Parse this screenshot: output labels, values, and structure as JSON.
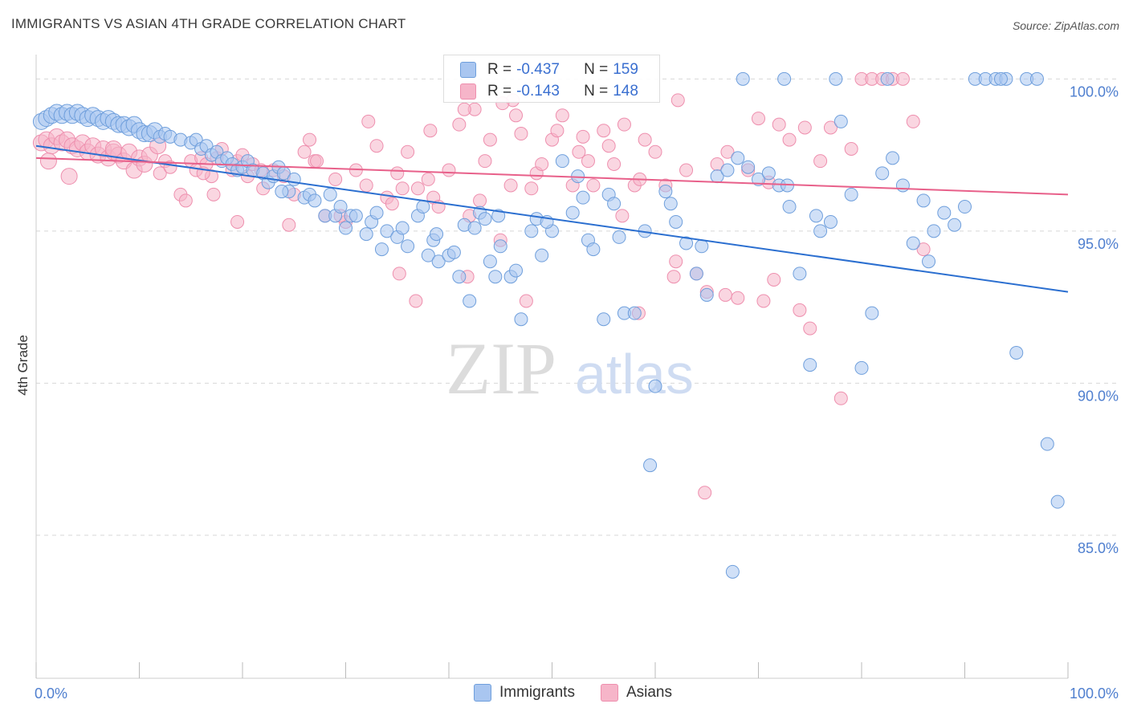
{
  "header": {
    "title": "IMMIGRANTS VS ASIAN 4TH GRADE CORRELATION CHART",
    "source": "Source: ZipAtlas.com"
  },
  "watermark": {
    "zip": "ZIP",
    "atlas": "atlas"
  },
  "legend": {
    "rows": [
      {
        "r_label": "R =",
        "r_value": "-0.437",
        "n_label": "N =",
        "n_value": "159"
      },
      {
        "r_label": "R =",
        "r_value": "-0.143",
        "n_label": "N =",
        "n_value": "148"
      }
    ]
  },
  "bottom_legend": {
    "items": [
      "Immigrants",
      "Asians"
    ]
  },
  "colors": {
    "immigrants_fill": "#a9c6f0",
    "immigrants_stroke": "#6f9fdc",
    "immigrants_line": "#2b6fd0",
    "asians_fill": "#f6b5c9",
    "asians_stroke": "#ee8fae",
    "asians_line": "#e8608a",
    "tick_label": "#4f7fcf",
    "grid": "#d8d8d8"
  },
  "chart_data": {
    "type": "scatter",
    "title": "IMMIGRANTS VS ASIAN 4TH GRADE CORRELATION CHART",
    "xlabel": "",
    "ylabel": "4th Grade",
    "xlim": [
      0,
      100
    ],
    "ylim": [
      80.3,
      100.8
    ],
    "x_tick_labels": [
      "0.0%",
      "100.0%"
    ],
    "y_ticks": [
      85,
      90,
      95,
      100
    ],
    "y_tick_labels": [
      "85.0%",
      "90.0%",
      "95.0%",
      "100.0%"
    ],
    "grid": true,
    "legend_position": "top-center",
    "series": [
      {
        "name": "Immigrants",
        "trend": [
          [
            0,
            97.8
          ],
          [
            100,
            93.0
          ]
        ],
        "points": [
          [
            0.5,
            98.6
          ],
          [
            1,
            98.7
          ],
          [
            1.5,
            98.8
          ],
          [
            2,
            98.9
          ],
          [
            2.5,
            98.8
          ],
          [
            3,
            98.9
          ],
          [
            3.5,
            98.8
          ],
          [
            4,
            98.9
          ],
          [
            4.5,
            98.8
          ],
          [
            5,
            98.7
          ],
          [
            5.5,
            98.8
          ],
          [
            6,
            98.7
          ],
          [
            6.5,
            98.6
          ],
          [
            7,
            98.7
          ],
          [
            7.5,
            98.6
          ],
          [
            8,
            98.5
          ],
          [
            8.5,
            98.5
          ],
          [
            9,
            98.4
          ],
          [
            9.5,
            98.5
          ],
          [
            10,
            98.3
          ],
          [
            10.5,
            98.2
          ],
          [
            11,
            98.2
          ],
          [
            11.5,
            98.3
          ],
          [
            12,
            98.1
          ],
          [
            12.5,
            98.2
          ],
          [
            13,
            98.1
          ],
          [
            14,
            98.0
          ],
          [
            15,
            97.9
          ],
          [
            15.5,
            98.0
          ],
          [
            16,
            97.7
          ],
          [
            16.5,
            97.8
          ],
          [
            17,
            97.5
          ],
          [
            17.5,
            97.6
          ],
          [
            18,
            97.3
          ],
          [
            18.5,
            97.4
          ],
          [
            19,
            97.2
          ],
          [
            19.5,
            97.0
          ],
          [
            20,
            97.1
          ],
          [
            20.5,
            97.3
          ],
          [
            21,
            97.0
          ],
          [
            22,
            96.9
          ],
          [
            22.5,
            96.6
          ],
          [
            23,
            96.8
          ],
          [
            23.5,
            97.1
          ],
          [
            24,
            96.9
          ],
          [
            24.5,
            96.3
          ],
          [
            25,
            96.7
          ],
          [
            26,
            96.1
          ],
          [
            26.5,
            96.2
          ],
          [
            27,
            96.0
          ],
          [
            28,
            95.5
          ],
          [
            28.5,
            96.2
          ],
          [
            29,
            95.5
          ],
          [
            29.5,
            95.8
          ],
          [
            30,
            95.1
          ],
          [
            30.5,
            95.5
          ],
          [
            31,
            95.5
          ],
          [
            32,
            94.9
          ],
          [
            32.5,
            95.3
          ],
          [
            33,
            95.6
          ],
          [
            34,
            95.0
          ],
          [
            35,
            94.8
          ],
          [
            35.5,
            95.1
          ],
          [
            36,
            94.5
          ],
          [
            37,
            95.5
          ],
          [
            37.5,
            95.8
          ],
          [
            38,
            94.2
          ],
          [
            38.5,
            94.7
          ],
          [
            39,
            94.0
          ],
          [
            40,
            94.2
          ],
          [
            40.5,
            94.3
          ],
          [
            41,
            93.5
          ],
          [
            41.5,
            95.2
          ],
          [
            42,
            92.7
          ],
          [
            42.5,
            95.1
          ],
          [
            43,
            95.6
          ],
          [
            43.5,
            95.4
          ],
          [
            44,
            94.0
          ],
          [
            44.5,
            93.5
          ],
          [
            45,
            94.5
          ],
          [
            46,
            93.5
          ],
          [
            46.5,
            93.7
          ],
          [
            47,
            92.1
          ],
          [
            48,
            95.0
          ],
          [
            48.5,
            95.4
          ],
          [
            49,
            94.2
          ],
          [
            50,
            95.0
          ],
          [
            51,
            97.3
          ],
          [
            52,
            95.6
          ],
          [
            53,
            96.1
          ],
          [
            53.5,
            94.7
          ],
          [
            54,
            94.4
          ],
          [
            55,
            92.1
          ],
          [
            55.5,
            96.2
          ],
          [
            56,
            95.9
          ],
          [
            57,
            92.3
          ],
          [
            58,
            92.3
          ],
          [
            59,
            95.0
          ],
          [
            60,
            89.9
          ],
          [
            61,
            96.3
          ],
          [
            62,
            95.3
          ],
          [
            63,
            94.6
          ],
          [
            64,
            93.6
          ],
          [
            65,
            92.9
          ],
          [
            66,
            96.8
          ],
          [
            67,
            97.0
          ],
          [
            68,
            97.4
          ],
          [
            69,
            97.1
          ],
          [
            70,
            96.7
          ],
          [
            71,
            96.9
          ],
          [
            72,
            96.5
          ],
          [
            73,
            95.8
          ],
          [
            74,
            93.6
          ],
          [
            75,
            90.6
          ],
          [
            76,
            95.0
          ],
          [
            77,
            95.3
          ],
          [
            78,
            98.6
          ],
          [
            79,
            96.2
          ],
          [
            80,
            90.5
          ],
          [
            81,
            92.3
          ],
          [
            82,
            96.9
          ],
          [
            83,
            97.4
          ],
          [
            84,
            96.5
          ],
          [
            85,
            94.6
          ],
          [
            86,
            96.0
          ],
          [
            87,
            95.0
          ],
          [
            88,
            95.6
          ],
          [
            89,
            95.2
          ],
          [
            90,
            95.8
          ],
          [
            91,
            100.0
          ],
          [
            92,
            100.0
          ],
          [
            93,
            100.0
          ],
          [
            94,
            100.0
          ],
          [
            95,
            91.0
          ],
          [
            96,
            100.0
          ],
          [
            97,
            100.0
          ],
          [
            98,
            88.0
          ],
          [
            99,
            86.1
          ],
          [
            68.5,
            100.0
          ],
          [
            72.5,
            100.0
          ],
          [
            77.5,
            100.0
          ],
          [
            82.5,
            100.0
          ],
          [
            93.5,
            100.0
          ],
          [
            86.5,
            94.0
          ],
          [
            59.5,
            87.3
          ],
          [
            67.5,
            83.8
          ],
          [
            64.5,
            94.5
          ],
          [
            72.8,
            96.5
          ],
          [
            75.6,
            95.5
          ],
          [
            61.5,
            95.9
          ],
          [
            56.5,
            94.8
          ],
          [
            52.5,
            96.8
          ],
          [
            49.5,
            95.3
          ],
          [
            44.8,
            95.5
          ],
          [
            38.8,
            94.9
          ],
          [
            33.5,
            94.4
          ],
          [
            23.8,
            96.3
          ]
        ]
      },
      {
        "name": "Asians",
        "trend": [
          [
            0,
            97.4
          ],
          [
            100,
            96.2
          ]
        ],
        "points": [
          [
            0.5,
            97.9
          ],
          [
            1,
            98.0
          ],
          [
            1.5,
            97.8
          ],
          [
            2,
            98.1
          ],
          [
            2.5,
            97.9
          ],
          [
            3,
            98.0
          ],
          [
            3.5,
            97.8
          ],
          [
            4,
            97.7
          ],
          [
            4.5,
            97.9
          ],
          [
            5,
            97.6
          ],
          [
            5.5,
            97.8
          ],
          [
            6,
            97.5
          ],
          [
            6.5,
            97.7
          ],
          [
            7,
            97.4
          ],
          [
            7.5,
            97.6
          ],
          [
            8,
            97.5
          ],
          [
            8.5,
            97.3
          ],
          [
            9,
            97.6
          ],
          [
            9.5,
            97.0
          ],
          [
            10,
            97.4
          ],
          [
            10.5,
            97.2
          ],
          [
            11,
            97.5
          ],
          [
            12,
            96.9
          ],
          [
            12.5,
            97.3
          ],
          [
            13,
            97.1
          ],
          [
            14,
            96.2
          ],
          [
            14.5,
            96.0
          ],
          [
            15,
            97.3
          ],
          [
            15.5,
            97.0
          ],
          [
            16,
            97.4
          ],
          [
            16.5,
            97.2
          ],
          [
            17,
            96.8
          ],
          [
            17.5,
            97.4
          ],
          [
            18,
            97.7
          ],
          [
            19,
            97.0
          ],
          [
            19.5,
            97.3
          ],
          [
            20,
            97.5
          ],
          [
            20.5,
            96.8
          ],
          [
            21,
            97.2
          ],
          [
            22,
            96.4
          ],
          [
            23,
            97.0
          ],
          [
            24,
            96.8
          ],
          [
            25,
            96.2
          ],
          [
            26,
            97.6
          ],
          [
            26.5,
            98.0
          ],
          [
            27,
            97.3
          ],
          [
            28,
            95.5
          ],
          [
            29,
            96.7
          ],
          [
            30,
            95.3
          ],
          [
            31,
            97.0
          ],
          [
            32,
            96.5
          ],
          [
            33,
            97.8
          ],
          [
            34,
            96.1
          ],
          [
            34.5,
            95.9
          ],
          [
            35,
            96.9
          ],
          [
            35.5,
            96.4
          ],
          [
            36,
            97.6
          ],
          [
            37,
            96.4
          ],
          [
            38,
            96.7
          ],
          [
            38.5,
            96.1
          ],
          [
            39,
            95.8
          ],
          [
            40,
            97.0
          ],
          [
            41,
            98.5
          ],
          [
            42,
            95.5
          ],
          [
            42.5,
            99.0
          ],
          [
            43,
            96.0
          ],
          [
            43.5,
            97.3
          ],
          [
            44,
            98.0
          ],
          [
            45,
            94.7
          ],
          [
            46,
            96.5
          ],
          [
            46.5,
            98.8
          ],
          [
            47,
            98.2
          ],
          [
            48,
            96.4
          ],
          [
            48.5,
            96.9
          ],
          [
            49,
            97.2
          ],
          [
            50,
            98.0
          ],
          [
            51,
            98.8
          ],
          [
            52,
            96.5
          ],
          [
            53,
            98.1
          ],
          [
            53.5,
            97.3
          ],
          [
            54,
            96.5
          ],
          [
            55,
            98.3
          ],
          [
            55.5,
            97.8
          ],
          [
            56,
            97.2
          ],
          [
            57,
            98.5
          ],
          [
            58,
            96.5
          ],
          [
            58.5,
            96.7
          ],
          [
            59,
            98.0
          ],
          [
            60,
            97.6
          ],
          [
            61,
            96.5
          ],
          [
            62,
            94.0
          ],
          [
            63,
            97.0
          ],
          [
            64,
            93.6
          ],
          [
            65,
            93.0
          ],
          [
            66,
            97.2
          ],
          [
            67,
            97.6
          ],
          [
            68,
            92.8
          ],
          [
            69,
            97.0
          ],
          [
            70,
            98.7
          ],
          [
            71,
            96.6
          ],
          [
            72,
            98.5
          ],
          [
            73,
            98.0
          ],
          [
            74,
            92.4
          ],
          [
            75,
            91.8
          ],
          [
            76,
            97.3
          ],
          [
            77,
            98.4
          ],
          [
            78,
            89.5
          ],
          [
            79,
            97.7
          ],
          [
            80,
            100.0
          ],
          [
            81,
            100.0
          ],
          [
            82,
            100.0
          ],
          [
            83,
            100.0
          ],
          [
            84,
            100.0
          ],
          [
            85,
            98.6
          ],
          [
            86,
            94.4
          ],
          [
            41.5,
            99.0
          ],
          [
            46.2,
            99.3
          ],
          [
            50.5,
            98.3
          ],
          [
            45.2,
            99.2
          ],
          [
            38.2,
            98.3
          ],
          [
            32.2,
            98.6
          ],
          [
            27.2,
            97.3
          ],
          [
            21.8,
            97.0
          ],
          [
            17.2,
            96.2
          ],
          [
            11.8,
            97.8
          ],
          [
            7.5,
            97.7
          ],
          [
            3.2,
            96.8
          ],
          [
            1.2,
            97.3
          ],
          [
            16.2,
            96.9
          ],
          [
            29.5,
            95.5
          ],
          [
            35.2,
            93.6
          ],
          [
            41.8,
            93.5
          ],
          [
            47.5,
            92.7
          ],
          [
            56.8,
            95.5
          ],
          [
            61.8,
            93.5
          ],
          [
            66.8,
            92.9
          ],
          [
            70.5,
            92.7
          ],
          [
            64.8,
            86.4
          ],
          [
            71.5,
            93.4
          ],
          [
            58.4,
            92.3
          ],
          [
            74.5,
            98.4
          ],
          [
            62.2,
            99.3
          ],
          [
            52.6,
            97.6
          ],
          [
            36.8,
            92.7
          ],
          [
            24.5,
            95.2
          ],
          [
            19.5,
            95.3
          ]
        ]
      }
    ]
  }
}
